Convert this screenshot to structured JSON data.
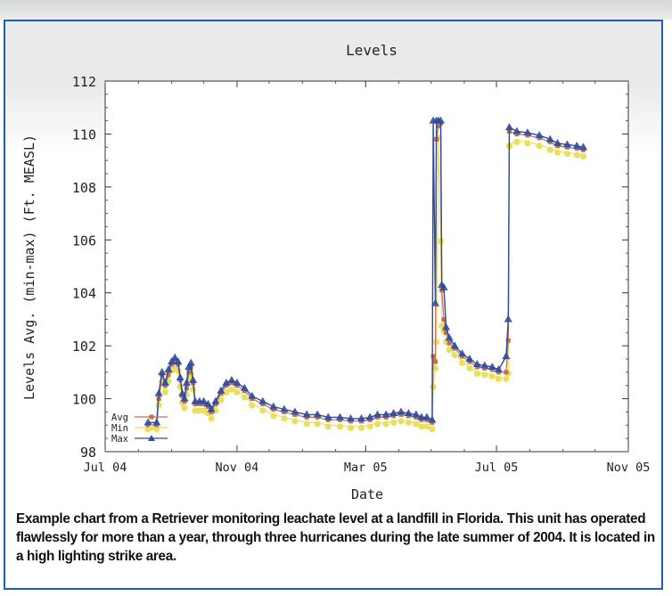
{
  "chart_data": {
    "type": "line",
    "title": "Levels",
    "xlabel": "Date",
    "ylabel": "Levels Avg. (min-max) (Ft. MEASL)",
    "x_ticks": [
      "Jul 04",
      "Nov 04",
      "Mar 05",
      "Jul 05",
      "Nov 05"
    ],
    "x_tick_dates": [
      "2004-07-01",
      "2004-11-01",
      "2005-03-01",
      "2005-07-01",
      "2005-11-01"
    ],
    "xlim": [
      "2004-07-01",
      "2005-11-01"
    ],
    "y_ticks": [
      98,
      100,
      102,
      104,
      106,
      108,
      110,
      112
    ],
    "ylim": [
      98,
      112
    ],
    "grid": false,
    "legend_position": "bottom-left",
    "series": [
      {
        "name": "Avg",
        "color": "#c0704a",
        "marker": "square",
        "points": [
          [
            "2004-08-10",
            99.0
          ],
          [
            "2004-08-18",
            99.0
          ],
          [
            "2004-08-20",
            100.0
          ],
          [
            "2004-08-23",
            100.9
          ],
          [
            "2004-08-26",
            100.5
          ],
          [
            "2004-08-29",
            100.9
          ],
          [
            "2004-09-01",
            101.3
          ],
          [
            "2004-09-04",
            101.4
          ],
          [
            "2004-09-07",
            101.3
          ],
          [
            "2004-09-09",
            100.7
          ],
          [
            "2004-09-11",
            100.1
          ],
          [
            "2004-09-13",
            99.9
          ],
          [
            "2004-09-15",
            100.4
          ],
          [
            "2004-09-17",
            101.0
          ],
          [
            "2004-09-19",
            101.2
          ],
          [
            "2004-09-21",
            100.6
          ],
          [
            "2004-09-23",
            99.8
          ],
          [
            "2004-09-27",
            99.8
          ],
          [
            "2004-10-01",
            99.8
          ],
          [
            "2004-10-05",
            99.7
          ],
          [
            "2004-10-08",
            99.5
          ],
          [
            "2004-10-12",
            99.8
          ],
          [
            "2004-10-17",
            100.2
          ],
          [
            "2004-10-22",
            100.5
          ],
          [
            "2004-10-27",
            100.6
          ],
          [
            "2004-11-01",
            100.5
          ],
          [
            "2004-11-08",
            100.3
          ],
          [
            "2004-11-15",
            100.0
          ],
          [
            "2004-11-25",
            99.8
          ],
          [
            "2004-12-05",
            99.6
          ],
          [
            "2004-12-15",
            99.5
          ],
          [
            "2004-12-25",
            99.4
          ],
          [
            "2005-01-05",
            99.3
          ],
          [
            "2005-01-15",
            99.3
          ],
          [
            "2005-01-25",
            99.2
          ],
          [
            "2005-02-05",
            99.2
          ],
          [
            "2005-02-15",
            99.15
          ],
          [
            "2005-02-25",
            99.15
          ],
          [
            "2005-03-05",
            99.2
          ],
          [
            "2005-03-12",
            99.3
          ],
          [
            "2005-03-20",
            99.3
          ],
          [
            "2005-03-27",
            99.35
          ],
          [
            "2005-04-03",
            99.4
          ],
          [
            "2005-04-10",
            99.35
          ],
          [
            "2005-04-17",
            99.3
          ],
          [
            "2005-04-22",
            99.2
          ],
          [
            "2005-04-27",
            99.2
          ],
          [
            "2005-05-02",
            99.1
          ],
          [
            "2005-05-03",
            101.6
          ],
          [
            "2005-05-05",
            101.4
          ],
          [
            "2005-05-06",
            109.8
          ],
          [
            "2005-05-08",
            110.3
          ],
          [
            "2005-05-10",
            110.4
          ],
          [
            "2005-05-11",
            104.1
          ],
          [
            "2005-05-13",
            103.0
          ],
          [
            "2005-05-15",
            102.5
          ],
          [
            "2005-05-18",
            102.1
          ],
          [
            "2005-05-23",
            101.9
          ],
          [
            "2005-05-30",
            101.6
          ],
          [
            "2005-06-06",
            101.4
          ],
          [
            "2005-06-13",
            101.2
          ],
          [
            "2005-06-20",
            101.15
          ],
          [
            "2005-06-27",
            101.1
          ],
          [
            "2005-07-03",
            101.0
          ],
          [
            "2005-07-10",
            101.0
          ],
          [
            "2005-07-12",
            102.2
          ],
          [
            "2005-07-13",
            110.1
          ],
          [
            "2005-07-20",
            110.0
          ],
          [
            "2005-07-30",
            109.95
          ],
          [
            "2005-08-10",
            109.85
          ],
          [
            "2005-08-20",
            109.7
          ],
          [
            "2005-08-27",
            109.55
          ],
          [
            "2005-09-05",
            109.5
          ],
          [
            "2005-09-14",
            109.45
          ],
          [
            "2005-09-20",
            109.4
          ]
        ]
      },
      {
        "name": "Min",
        "color": "#e8e060",
        "marker": "circle",
        "points": [
          [
            "2004-08-10",
            98.9
          ],
          [
            "2004-08-18",
            98.9
          ],
          [
            "2004-08-20",
            99.8
          ],
          [
            "2004-08-23",
            100.7
          ],
          [
            "2004-08-26",
            100.3
          ],
          [
            "2004-08-29",
            100.7
          ],
          [
            "2004-09-01",
            101.1
          ],
          [
            "2004-09-04",
            101.2
          ],
          [
            "2004-09-07",
            101.1
          ],
          [
            "2004-09-09",
            100.5
          ],
          [
            "2004-09-11",
            99.9
          ],
          [
            "2004-09-13",
            99.7
          ],
          [
            "2004-09-15",
            100.2
          ],
          [
            "2004-09-17",
            100.8
          ],
          [
            "2004-09-19",
            101.0
          ],
          [
            "2004-09-21",
            100.4
          ],
          [
            "2004-09-23",
            99.6
          ],
          [
            "2004-09-27",
            99.6
          ],
          [
            "2004-10-01",
            99.6
          ],
          [
            "2004-10-05",
            99.5
          ],
          [
            "2004-10-08",
            99.3
          ],
          [
            "2004-10-12",
            99.6
          ],
          [
            "2004-10-17",
            100.0
          ],
          [
            "2004-10-22",
            100.3
          ],
          [
            "2004-10-27",
            100.4
          ],
          [
            "2004-11-01",
            100.3
          ],
          [
            "2004-11-08",
            100.1
          ],
          [
            "2004-11-15",
            99.8
          ],
          [
            "2004-11-25",
            99.6
          ],
          [
            "2004-12-05",
            99.4
          ],
          [
            "2004-12-15",
            99.3
          ],
          [
            "2004-12-25",
            99.2
          ],
          [
            "2005-01-05",
            99.1
          ],
          [
            "2005-01-15",
            99.1
          ],
          [
            "2005-01-25",
            99.0
          ],
          [
            "2005-02-05",
            99.0
          ],
          [
            "2005-02-15",
            98.95
          ],
          [
            "2005-02-25",
            98.95
          ],
          [
            "2005-03-05",
            99.0
          ],
          [
            "2005-03-12",
            99.1
          ],
          [
            "2005-03-20",
            99.1
          ],
          [
            "2005-03-27",
            99.15
          ],
          [
            "2005-04-03",
            99.2
          ],
          [
            "2005-04-10",
            99.15
          ],
          [
            "2005-04-17",
            99.1
          ],
          [
            "2005-04-22",
            99.0
          ],
          [
            "2005-04-27",
            99.0
          ],
          [
            "2005-05-02",
            98.9
          ],
          [
            "2005-05-03",
            100.5
          ],
          [
            "2005-05-05",
            101.2
          ],
          [
            "2005-05-06",
            102.2
          ],
          [
            "2005-05-08",
            109.9
          ],
          [
            "2005-05-10",
            106.0
          ],
          [
            "2005-05-11",
            102.8
          ],
          [
            "2005-05-13",
            102.6
          ],
          [
            "2005-05-15",
            102.2
          ],
          [
            "2005-05-18",
            101.9
          ],
          [
            "2005-05-23",
            101.7
          ],
          [
            "2005-05-30",
            101.4
          ],
          [
            "2005-06-06",
            101.2
          ],
          [
            "2005-06-13",
            101.0
          ],
          [
            "2005-06-20",
            100.95
          ],
          [
            "2005-06-27",
            100.9
          ],
          [
            "2005-07-03",
            100.8
          ],
          [
            "2005-07-10",
            100.8
          ],
          [
            "2005-07-12",
            101.0
          ],
          [
            "2005-07-13",
            109.6
          ],
          [
            "2005-07-20",
            109.75
          ],
          [
            "2005-07-30",
            109.7
          ],
          [
            "2005-08-10",
            109.6
          ],
          [
            "2005-08-20",
            109.45
          ],
          [
            "2005-08-27",
            109.35
          ],
          [
            "2005-09-05",
            109.3
          ],
          [
            "2005-09-14",
            109.25
          ],
          [
            "2005-09-20",
            109.2
          ]
        ]
      },
      {
        "name": "Max",
        "color": "#2f4a9e",
        "marker": "triangle",
        "points": [
          [
            "2004-08-10",
            99.1
          ],
          [
            "2004-08-18",
            99.1
          ],
          [
            "2004-08-20",
            100.2
          ],
          [
            "2004-08-23",
            101.0
          ],
          [
            "2004-08-26",
            100.6
          ],
          [
            "2004-08-29",
            101.1
          ],
          [
            "2004-09-01",
            101.4
          ],
          [
            "2004-09-04",
            101.55
          ],
          [
            "2004-09-07",
            101.4
          ],
          [
            "2004-09-09",
            100.8
          ],
          [
            "2004-09-11",
            100.2
          ],
          [
            "2004-09-13",
            100.0
          ],
          [
            "2004-09-15",
            100.6
          ],
          [
            "2004-09-17",
            101.2
          ],
          [
            "2004-09-19",
            101.35
          ],
          [
            "2004-09-21",
            100.7
          ],
          [
            "2004-09-23",
            99.9
          ],
          [
            "2004-09-27",
            99.9
          ],
          [
            "2004-10-01",
            99.9
          ],
          [
            "2004-10-05",
            99.8
          ],
          [
            "2004-10-08",
            99.6
          ],
          [
            "2004-10-12",
            99.9
          ],
          [
            "2004-10-17",
            100.3
          ],
          [
            "2004-10-22",
            100.6
          ],
          [
            "2004-10-27",
            100.7
          ],
          [
            "2004-11-01",
            100.6
          ],
          [
            "2004-11-08",
            100.4
          ],
          [
            "2004-11-15",
            100.1
          ],
          [
            "2004-11-25",
            99.9
          ],
          [
            "2004-12-05",
            99.7
          ],
          [
            "2004-12-15",
            99.6
          ],
          [
            "2004-12-25",
            99.5
          ],
          [
            "2005-01-05",
            99.4
          ],
          [
            "2005-01-15",
            99.4
          ],
          [
            "2005-01-25",
            99.3
          ],
          [
            "2005-02-05",
            99.3
          ],
          [
            "2005-02-15",
            99.25
          ],
          [
            "2005-02-25",
            99.25
          ],
          [
            "2005-03-05",
            99.3
          ],
          [
            "2005-03-12",
            99.4
          ],
          [
            "2005-03-20",
            99.4
          ],
          [
            "2005-03-27",
            99.45
          ],
          [
            "2005-04-03",
            99.5
          ],
          [
            "2005-04-10",
            99.45
          ],
          [
            "2005-04-17",
            99.4
          ],
          [
            "2005-04-22",
            99.3
          ],
          [
            "2005-04-27",
            99.3
          ],
          [
            "2005-05-02",
            99.2
          ],
          [
            "2005-05-03",
            110.5
          ],
          [
            "2005-05-05",
            103.6
          ],
          [
            "2005-05-06",
            110.5
          ],
          [
            "2005-05-08",
            110.5
          ],
          [
            "2005-05-10",
            110.5
          ],
          [
            "2005-05-11",
            104.3
          ],
          [
            "2005-05-13",
            104.2
          ],
          [
            "2005-05-15",
            102.7
          ],
          [
            "2005-05-18",
            102.3
          ],
          [
            "2005-05-23",
            102.0
          ],
          [
            "2005-05-30",
            101.7
          ],
          [
            "2005-06-06",
            101.5
          ],
          [
            "2005-06-13",
            101.3
          ],
          [
            "2005-06-20",
            101.25
          ],
          [
            "2005-06-27",
            101.2
          ],
          [
            "2005-07-03",
            101.1
          ],
          [
            "2005-07-10",
            101.6
          ],
          [
            "2005-07-12",
            103.0
          ],
          [
            "2005-07-13",
            110.25
          ],
          [
            "2005-07-20",
            110.1
          ],
          [
            "2005-07-30",
            110.05
          ],
          [
            "2005-08-10",
            109.95
          ],
          [
            "2005-08-20",
            109.8
          ],
          [
            "2005-08-27",
            109.65
          ],
          [
            "2005-09-05",
            109.6
          ],
          [
            "2005-09-14",
            109.55
          ],
          [
            "2005-09-20",
            109.5
          ]
        ]
      }
    ]
  },
  "caption": "Example chart from a Retriever monitoring leachate level at a landfill in Florida.  This unit has operated flawlessly for more than a year, through three hurricanes during the late summer of 2004.  It is located in a high lighting strike area."
}
